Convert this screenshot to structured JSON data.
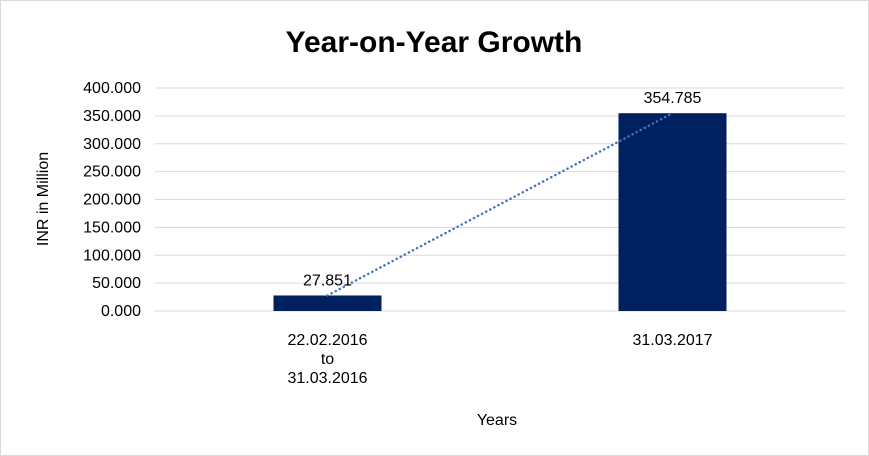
{
  "chart_data": {
    "type": "bar",
    "title": "Year-on-Year Growth",
    "xlabel": "Years",
    "ylabel": "INR in Million",
    "categories": [
      [
        "22.02.2016",
        "to",
        "31.03.2016"
      ],
      [
        "31.03.2017"
      ]
    ],
    "values": [
      27.851,
      354.785
    ],
    "data_labels": [
      "27.851",
      "354.785"
    ],
    "ylim": [
      0,
      400
    ],
    "yticks": [
      0,
      50,
      100,
      150,
      200,
      250,
      300,
      350,
      400
    ],
    "ytick_labels": [
      "0.000",
      "50.000",
      "100.000",
      "150.000",
      "200.000",
      "250.000",
      "300.000",
      "350.000",
      "400.000"
    ],
    "grid": true,
    "legend": "none",
    "trendline": "linear",
    "colors": {
      "bar": "#002060",
      "trendline": "#4472c4",
      "grid": "#d9d9d9"
    }
  }
}
